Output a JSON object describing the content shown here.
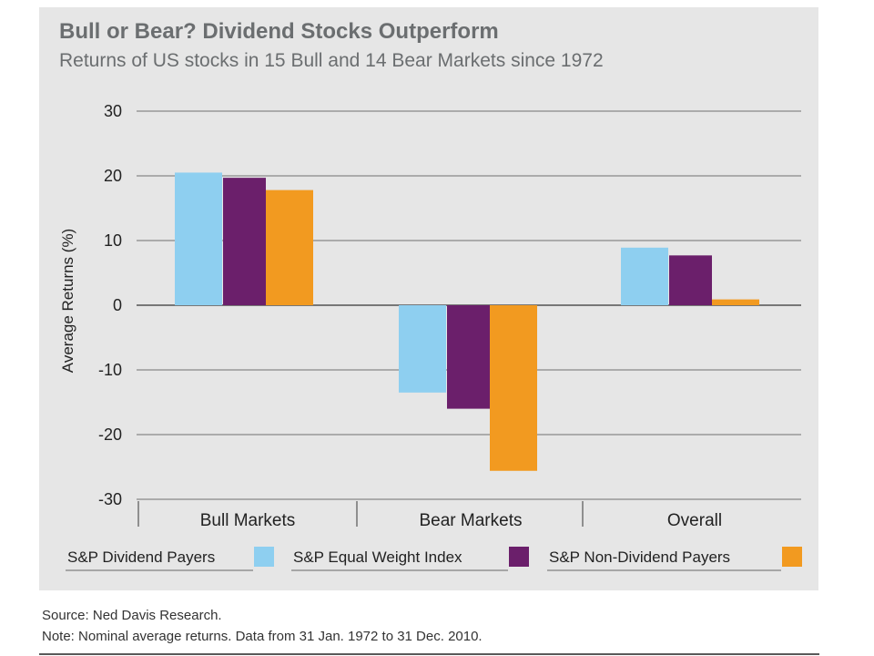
{
  "chart_data": {
    "type": "bar",
    "title": "Bull or Bear? Dividend Stocks Outperform",
    "subtitle": "Returns of US stocks in 15 Bull and 14 Bear Markets since 1972",
    "xlabel": "",
    "ylabel": "Average Returns (%)",
    "ylim": [
      -30,
      30
    ],
    "yticks": [
      "30",
      "20",
      "10",
      "0",
      "-10",
      "-20",
      "-30"
    ],
    "categories": [
      "Bull Markets",
      "Bear Markets",
      "Overall"
    ],
    "series": [
      {
        "name": "S&P Dividend Payers",
        "color": "#8ecff0",
        "values": [
          20.5,
          -13.5,
          8.9
        ]
      },
      {
        "name": "S&P Equal Weight Index",
        "color": "#6b1f6b",
        "values": [
          19.7,
          -16.0,
          7.7
        ]
      },
      {
        "name": "S&P Non-Dividend Payers",
        "color": "#f29a20",
        "values": [
          17.8,
          -25.6,
          0.9
        ]
      }
    ],
    "grid": true,
    "legend": "bottom"
  },
  "footer": {
    "source": "Source: Ned Davis Research.",
    "note": "Note: Nominal average returns. Data from 31 Jan. 1972 to 31 Dec. 2010."
  },
  "colors": {
    "panel": "#e6e6e6",
    "heading_text": "#6b6e70"
  }
}
